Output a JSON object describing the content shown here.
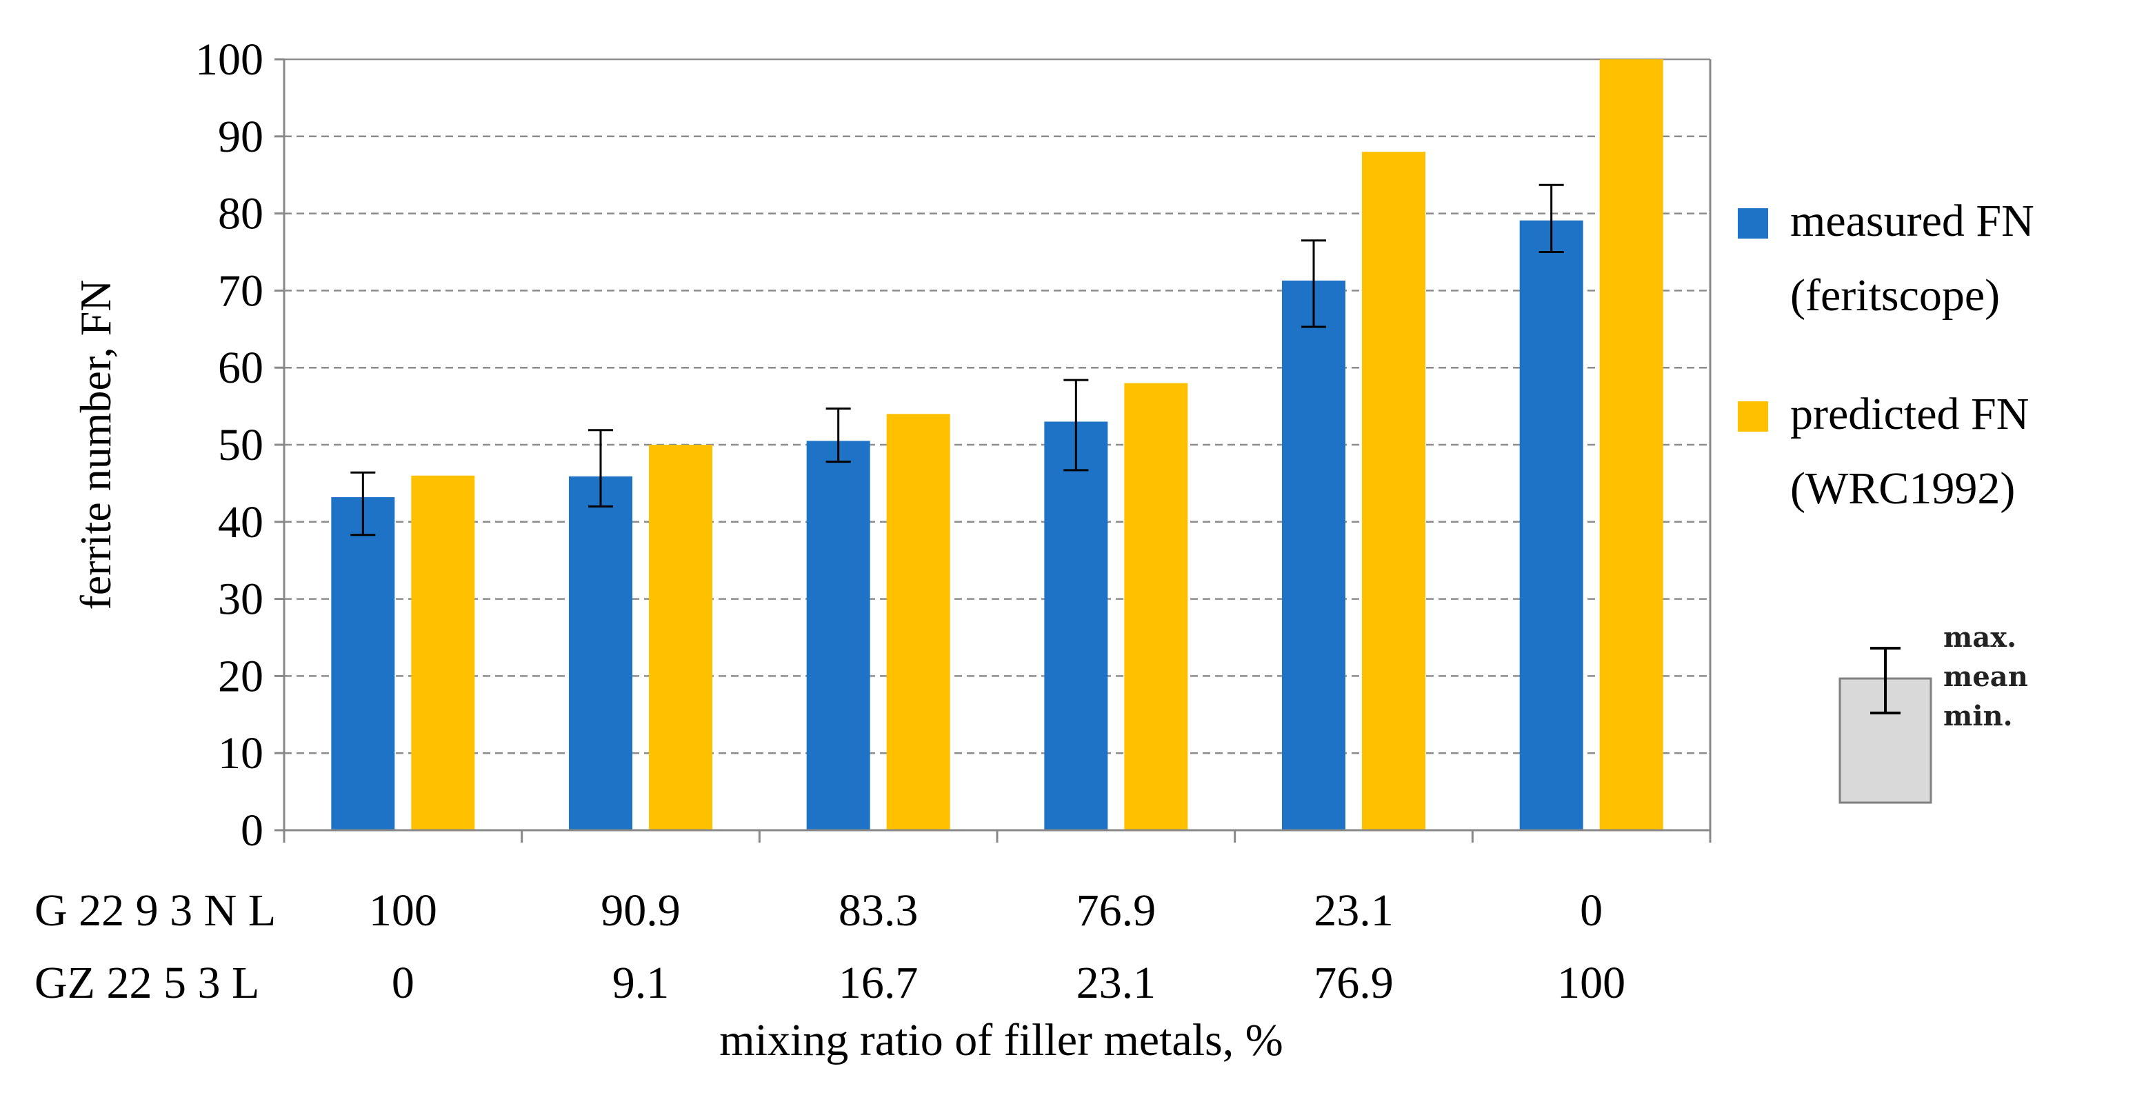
{
  "chart_data": {
    "type": "bar",
    "ylabel": "ferrite number, FN",
    "xlabel": "mixing ratio of filler metals, %",
    "ylim": [
      0,
      100
    ],
    "yticks": [
      0,
      10,
      20,
      30,
      40,
      50,
      60,
      70,
      80,
      90,
      100
    ],
    "grid": true,
    "category_rows": [
      {
        "label": "G 22 9 3 N L",
        "values": [
          "100",
          "90.9",
          "83.3",
          "76.9",
          "23.1",
          "0"
        ]
      },
      {
        "label": "GZ 22 5 3 L",
        "values": [
          "0",
          "9.1",
          "16.7",
          "23.1",
          "76.9",
          "100"
        ]
      }
    ],
    "series": [
      {
        "name": "measured FN (feritscope)",
        "legend_lines": [
          "measured FN",
          "(feritscope)"
        ],
        "color": "#1F73C6",
        "values": [
          43.2,
          45.9,
          50.5,
          53,
          71.3,
          79.1
        ],
        "err_min": [
          38.3,
          42,
          47.8,
          46.7,
          65.3,
          75
        ],
        "err_max": [
          46.4,
          51.9,
          54.7,
          58.4,
          76.5,
          83.7
        ]
      },
      {
        "name": "predicted FN (WRC1992)",
        "legend_lines": [
          "predicted FN",
          "(WRC1992)"
        ],
        "color": "#FFC000",
        "values": [
          46,
          50,
          54,
          58,
          88,
          100
        ]
      }
    ],
    "errorbar_key": {
      "labels": [
        "max.",
        "mean",
        "min."
      ]
    }
  }
}
